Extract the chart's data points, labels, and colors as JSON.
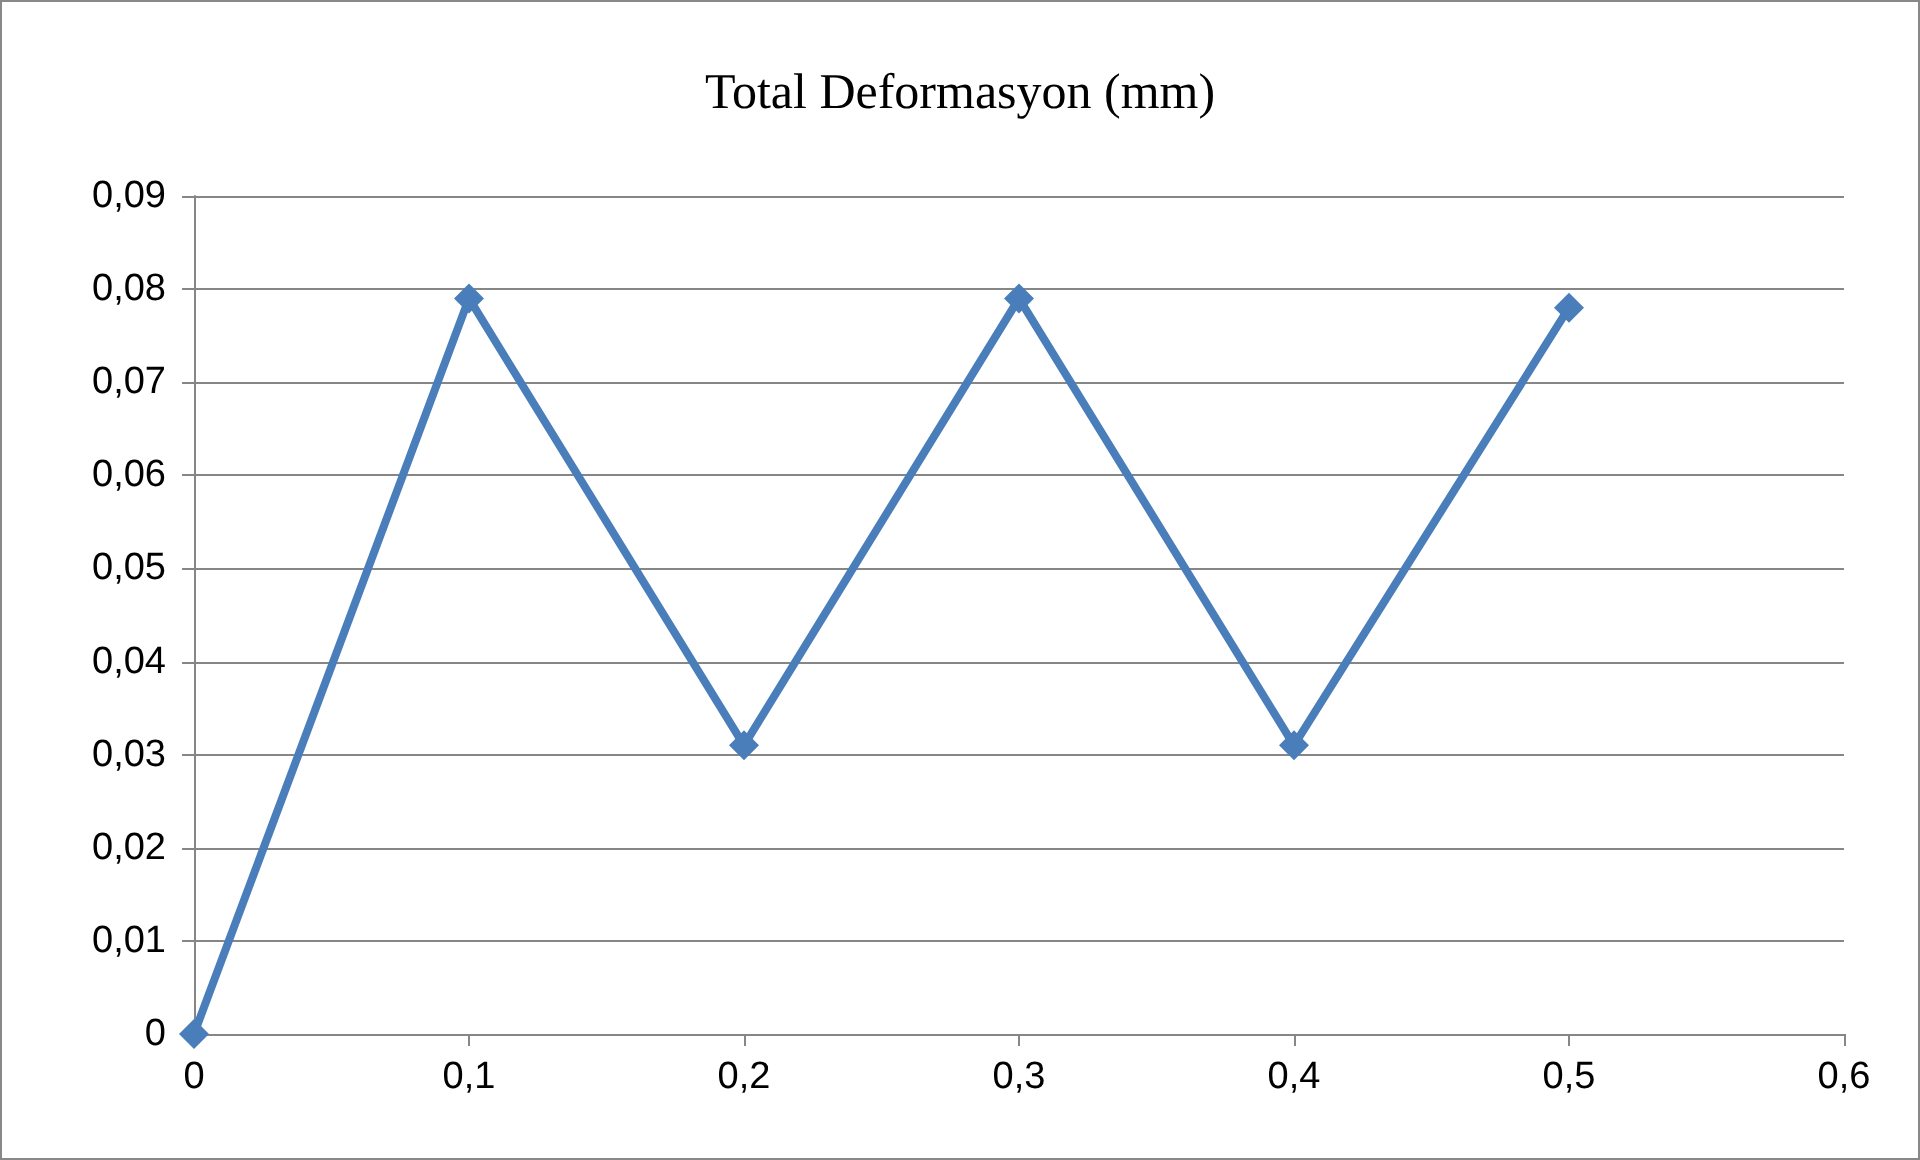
{
  "chart_data": {
    "type": "line",
    "title": "Total Deformasyon (mm)",
    "x": [
      0,
      0.1,
      0.2,
      0.3,
      0.4,
      0.5
    ],
    "series": [
      {
        "color": "#4a7ebb",
        "values": [
          0,
          0.079,
          0.031,
          0.079,
          0.031,
          0.078
        ]
      }
    ],
    "xlim": [
      0,
      0.6
    ],
    "xticks": [
      0,
      {
        "value": 0.1,
        "label": "0,1"
      },
      {
        "value": 0.2,
        "label": "0,2"
      },
      {
        "value": 0.3,
        "label": "0,3"
      },
      {
        "value": 0.4,
        "label": "0,4"
      },
      {
        "value": 0.5,
        "label": "0,5"
      },
      {
        "value": 0.6,
        "label": "0,6"
      }
    ],
    "ylim": [
      0,
      0.09
    ],
    "yticks": [
      0,
      {
        "value": 0.01,
        "label": "0,01"
      },
      {
        "value": 0.02,
        "label": "0,02"
      },
      {
        "value": 0.03,
        "label": "0,03"
      },
      {
        "value": 0.04,
        "label": "0,04"
      },
      {
        "value": 0.05,
        "label": "0,05"
      },
      {
        "value": 0.06,
        "label": "0,06"
      },
      {
        "value": 0.07,
        "label": "0,07"
      },
      {
        "value": 0.08,
        "label": "0,08"
      },
      {
        "value": 0.09,
        "label": "0,09"
      }
    ],
    "grid": "y",
    "marker": "diamond",
    "line_style": "solid"
  }
}
